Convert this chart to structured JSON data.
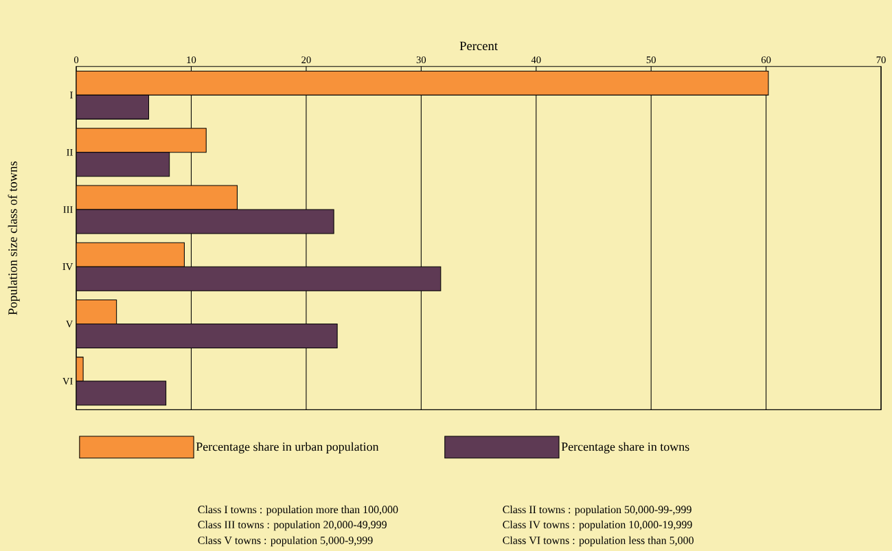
{
  "chart_data": {
    "type": "bar",
    "orientation": "horizontal",
    "xlabel": "Percent",
    "ylabel": "Population size class of towns",
    "categories": [
      "I",
      "II",
      "III",
      "IV",
      "V",
      "VI"
    ],
    "series": [
      {
        "name": "Percentage share in urban population",
        "color": "#f7923a",
        "values": [
          60.2,
          11.3,
          14.0,
          9.4,
          3.5,
          0.6
        ]
      },
      {
        "name": "Percentage share in towns",
        "color": "#5e3a54",
        "values": [
          6.3,
          8.1,
          22.4,
          31.7,
          22.7,
          7.8
        ]
      }
    ],
    "xlim": [
      0,
      70
    ],
    "xticks": [
      0,
      10,
      20,
      30,
      40,
      50,
      60,
      70
    ],
    "grid": "x",
    "legend": "bottom",
    "annotations": [
      "Class I towns : population more than 100,000",
      "Class II towns : population 50,000-99-,999",
      "Class III towns : population 20,000-49,999",
      "Class IV towns : population 10,000-19,999",
      "Class V towns : population 5,000-9,999",
      "Class VI towns : population less than 5,000"
    ]
  }
}
